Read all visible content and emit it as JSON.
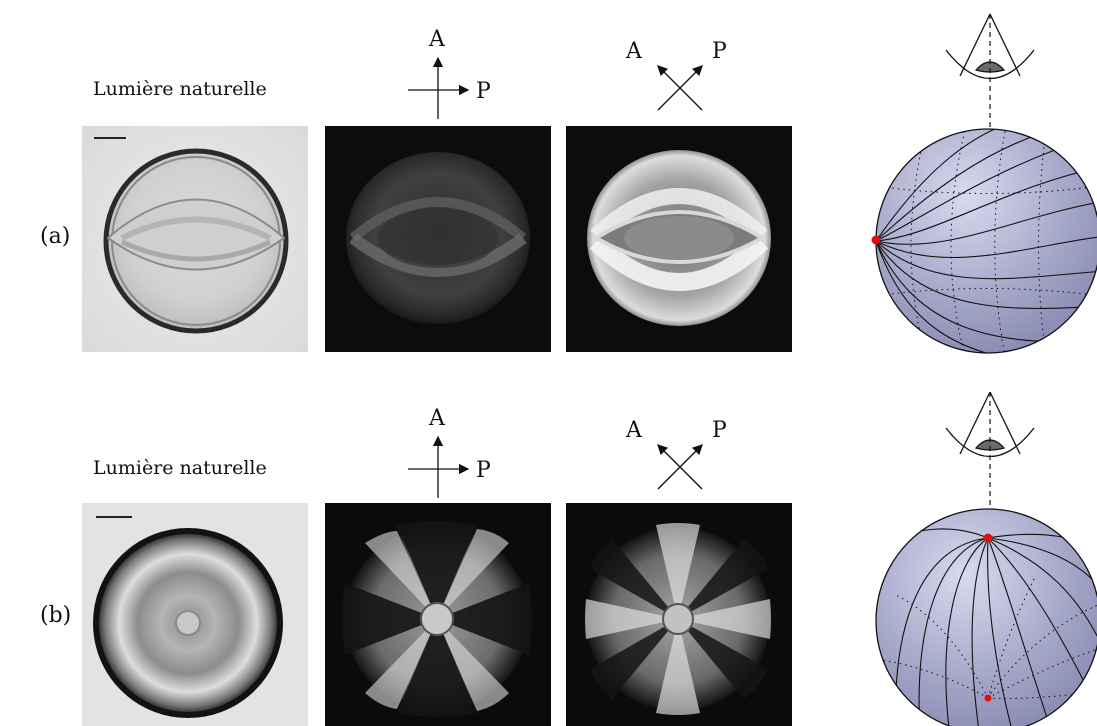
{
  "rows": [
    {
      "label": "(a)",
      "natural_light_label": "Lumière naturelle",
      "analyzer_label": "A",
      "polarizer_label": "P",
      "crossed_analyzer_label": "A",
      "crossed_polarizer_label": "P"
    },
    {
      "label": "(b)",
      "natural_light_label": "Lumière naturelle",
      "analyzer_label": "A",
      "polarizer_label": "P",
      "crossed_analyzer_label": "A",
      "crossed_polarizer_label": "P"
    }
  ],
  "colors": {
    "background": "#ffffff",
    "micrograph_dark": "#0b0b0b",
    "micrograph_light": "#e8e8e8",
    "sphere_fill": "#a9abcc",
    "defect_marker": "#e01010"
  }
}
